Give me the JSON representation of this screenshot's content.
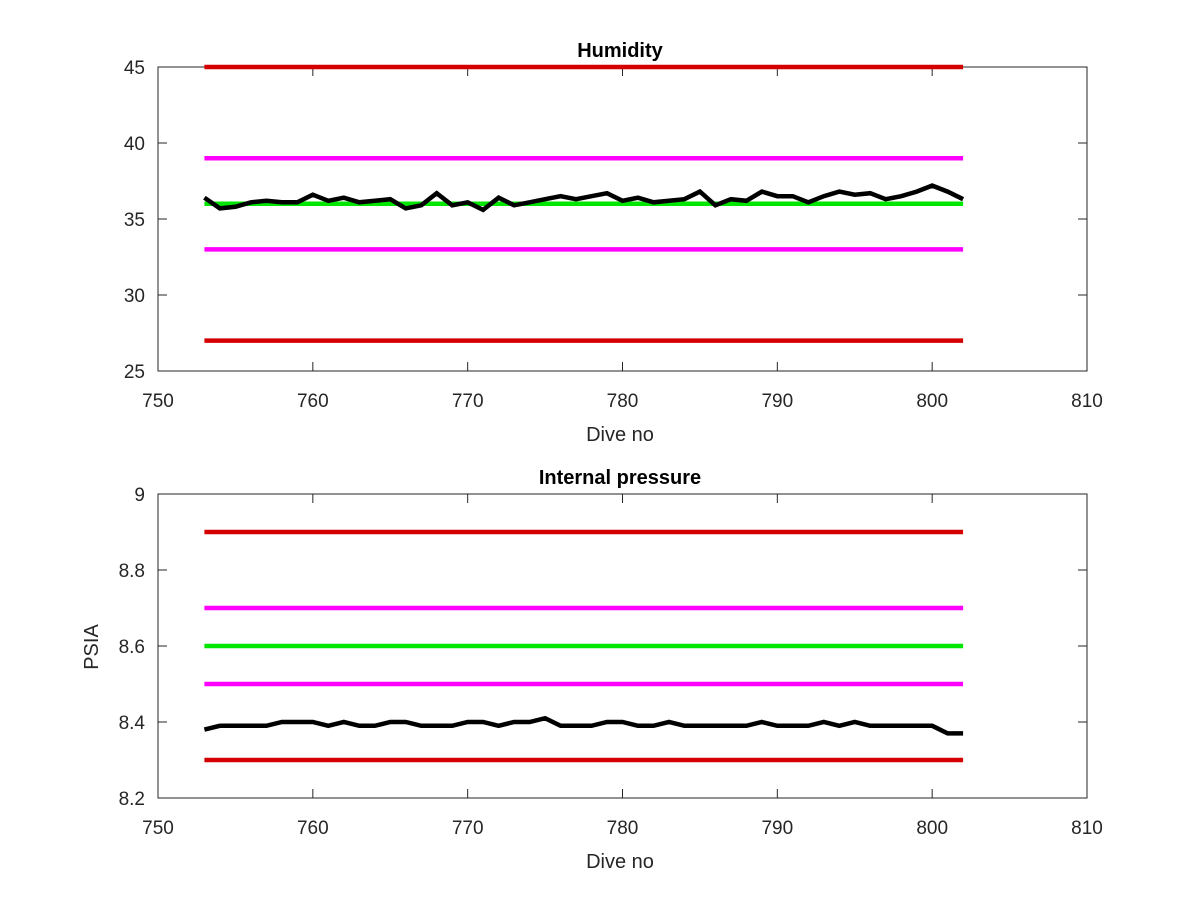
{
  "chart_data": [
    {
      "type": "line",
      "title": "Humidity",
      "xlabel": "Dive no",
      "ylabel": "",
      "xlim": [
        750,
        810
      ],
      "ylim": [
        25,
        45
      ],
      "xticks": [
        750,
        760,
        770,
        780,
        790,
        800,
        810
      ],
      "yticks": [
        25,
        30,
        35,
        40,
        45
      ],
      "grid": false,
      "series": [
        {
          "color": "#d40000",
          "x": [
            753,
            802
          ],
          "y": [
            45,
            45
          ]
        },
        {
          "color": "#ff00ff",
          "x": [
            753,
            802
          ],
          "y": [
            39,
            39
          ]
        },
        {
          "color": "#00e600",
          "x": [
            753,
            802
          ],
          "y": [
            36,
            36
          ]
        },
        {
          "color": "#ff00ff",
          "x": [
            753,
            802
          ],
          "y": [
            33,
            33
          ]
        },
        {
          "color": "#d40000",
          "x": [
            753,
            802
          ],
          "y": [
            27,
            27
          ]
        },
        {
          "color": "#000000",
          "x": [
            753,
            754,
            755,
            756,
            757,
            758,
            759,
            760,
            761,
            762,
            763,
            764,
            765,
            766,
            767,
            768,
            769,
            770,
            771,
            772,
            773,
            774,
            775,
            776,
            777,
            778,
            779,
            780,
            781,
            782,
            783,
            784,
            785,
            786,
            787,
            788,
            789,
            790,
            791,
            792,
            793,
            794,
            795,
            796,
            797,
            798,
            799,
            800,
            801,
            802
          ],
          "y": [
            36.4,
            35.7,
            35.8,
            36.1,
            36.2,
            36.1,
            36.1,
            36.6,
            36.2,
            36.4,
            36.1,
            36.2,
            36.3,
            35.7,
            35.9,
            36.7,
            35.9,
            36.1,
            35.6,
            36.4,
            35.9,
            36.1,
            36.3,
            36.5,
            36.3,
            36.5,
            36.7,
            36.2,
            36.4,
            36.1,
            36.2,
            36.3,
            36.8,
            35.9,
            36.3,
            36.2,
            36.8,
            36.5,
            36.5,
            36.1,
            36.5,
            36.8,
            36.6,
            36.7,
            36.3,
            36.5,
            36.8,
            37.2,
            36.8,
            36.3
          ]
        }
      ]
    },
    {
      "type": "line",
      "title": "Internal pressure",
      "xlabel": "Dive no",
      "ylabel": "PSIA",
      "xlim": [
        750,
        810
      ],
      "ylim": [
        8.2,
        9
      ],
      "xticks": [
        750,
        760,
        770,
        780,
        790,
        800,
        810
      ],
      "yticks": [
        8.2,
        8.4,
        8.6,
        8.8,
        9
      ],
      "ytick_labels": [
        "8.2",
        "8.4",
        "8.6",
        "8.8",
        "9"
      ],
      "grid": false,
      "series": [
        {
          "color": "#d40000",
          "x": [
            753,
            802
          ],
          "y": [
            8.9,
            8.9
          ]
        },
        {
          "color": "#ff00ff",
          "x": [
            753,
            802
          ],
          "y": [
            8.7,
            8.7
          ]
        },
        {
          "color": "#00e600",
          "x": [
            753,
            802
          ],
          "y": [
            8.6,
            8.6
          ]
        },
        {
          "color": "#ff00ff",
          "x": [
            753,
            802
          ],
          "y": [
            8.5,
            8.5
          ]
        },
        {
          "color": "#d40000",
          "x": [
            753,
            802
          ],
          "y": [
            8.3,
            8.3
          ]
        },
        {
          "color": "#000000",
          "x": [
            753,
            754,
            755,
            756,
            757,
            758,
            759,
            760,
            761,
            762,
            763,
            764,
            765,
            766,
            767,
            768,
            769,
            770,
            771,
            772,
            773,
            774,
            775,
            776,
            777,
            778,
            779,
            780,
            781,
            782,
            783,
            784,
            785,
            786,
            787,
            788,
            789,
            790,
            791,
            792,
            793,
            794,
            795,
            796,
            797,
            798,
            799,
            800,
            801,
            802
          ],
          "y": [
            8.38,
            8.39,
            8.39,
            8.39,
            8.39,
            8.4,
            8.4,
            8.4,
            8.39,
            8.4,
            8.39,
            8.39,
            8.4,
            8.4,
            8.39,
            8.39,
            8.39,
            8.4,
            8.4,
            8.39,
            8.4,
            8.4,
            8.41,
            8.39,
            8.39,
            8.39,
            8.4,
            8.4,
            8.39,
            8.39,
            8.4,
            8.39,
            8.39,
            8.39,
            8.39,
            8.39,
            8.4,
            8.39,
            8.39,
            8.39,
            8.4,
            8.39,
            8.4,
            8.39,
            8.39,
            8.39,
            8.39,
            8.39,
            8.37,
            8.37
          ]
        }
      ]
    }
  ]
}
